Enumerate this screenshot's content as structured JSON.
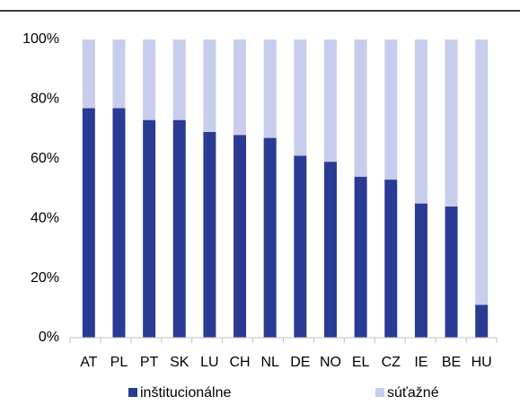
{
  "chart_data": {
    "type": "stacked_bar",
    "categories": [
      "AT",
      "PL",
      "PT",
      "SK",
      "LU",
      "CH",
      "NL",
      "DE",
      "NO",
      "EL",
      "CZ",
      "IE",
      "BE",
      "HU"
    ],
    "series": [
      {
        "name": "inštitucionálne",
        "color": "#2a3b94",
        "values": [
          77,
          77,
          73,
          73,
          69,
          68,
          67,
          61,
          59,
          54,
          53,
          45,
          44,
          11
        ]
      },
      {
        "name": "súťažné",
        "color": "#c7cdec",
        "values": [
          23,
          23,
          27,
          27,
          31,
          32,
          33,
          39,
          41,
          46,
          47,
          55,
          56,
          89
        ]
      }
    ],
    "ylim": [
      0,
      100
    ],
    "yticks": [
      {
        "value": 0,
        "label": "0%"
      },
      {
        "value": 20,
        "label": "20%"
      },
      {
        "value": 40,
        "label": "40%"
      },
      {
        "value": 60,
        "label": "60%"
      },
      {
        "value": 80,
        "label": "80%"
      },
      {
        "value": 100,
        "label": "100%"
      }
    ],
    "legend": "bottom"
  }
}
